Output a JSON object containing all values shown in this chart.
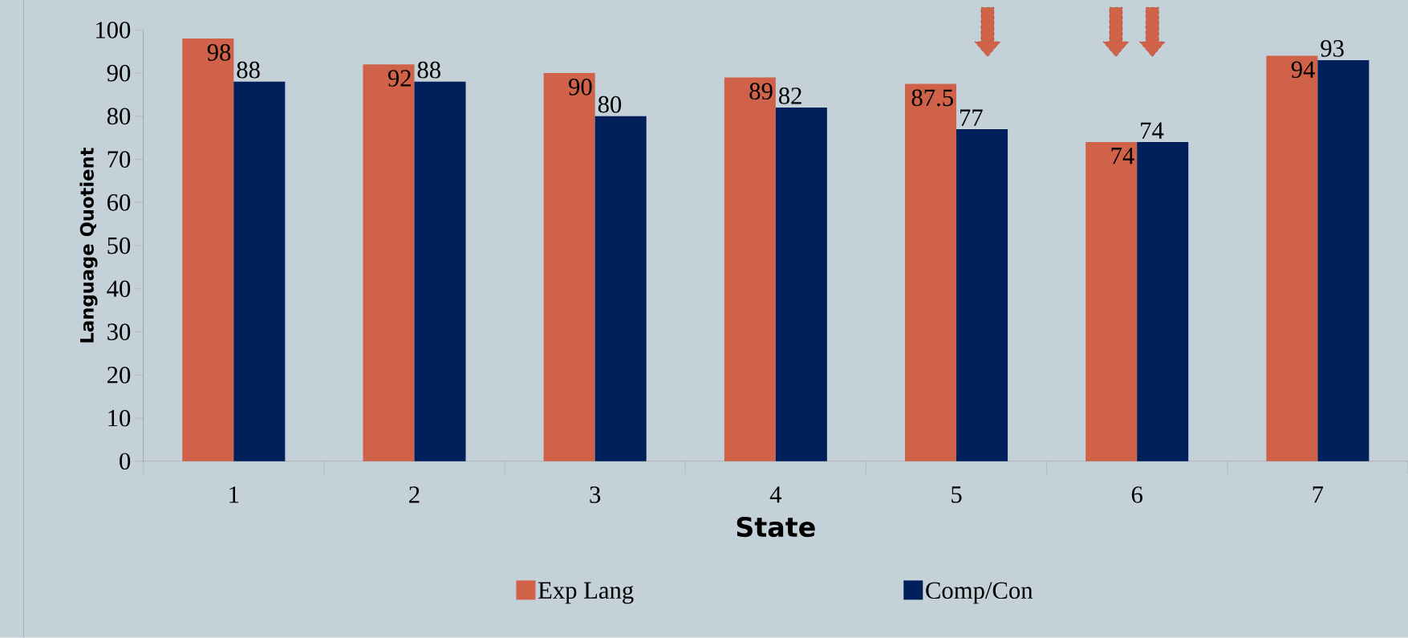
{
  "chart_data": {
    "type": "bar",
    "xlabel": "State",
    "ylabel": "Language Quotient",
    "categories": [
      "1",
      "2",
      "3",
      "4",
      "5",
      "6",
      "7"
    ],
    "series": [
      {
        "name": "Exp Lang",
        "color": "#d0624a",
        "values": [
          98,
          92,
          90,
          89,
          87.5,
          74,
          94
        ]
      },
      {
        "name": "Comp/Con",
        "color": "#00205b",
        "values": [
          88,
          88,
          80,
          82,
          77,
          74,
          93
        ]
      }
    ],
    "ylim": [
      0,
      100
    ],
    "yticks": [
      0,
      10,
      20,
      30,
      40,
      50,
      60,
      70,
      80,
      90,
      100
    ],
    "data_labels": true,
    "legend": "bottom",
    "grid": false
  }
}
